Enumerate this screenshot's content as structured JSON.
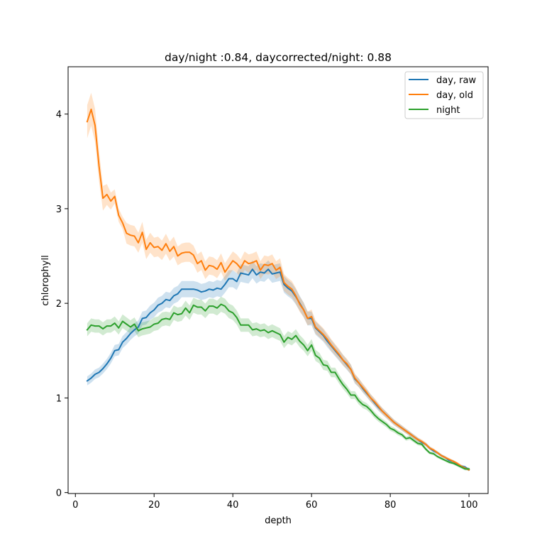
{
  "chart_data": {
    "type": "line",
    "title": "day/night :0.84, daycorrected/night: 0.88",
    "xlabel": "depth",
    "ylabel": "chlorophyll",
    "xlim": [
      -1.85,
      104.85
    ],
    "ylim": [
      -0.01,
      4.5
    ],
    "xticks": [
      0,
      20,
      40,
      60,
      80,
      100
    ],
    "yticks": [
      0,
      1,
      2,
      3,
      4
    ],
    "grid": false,
    "legend_position": "top-right",
    "x": [
      3,
      4,
      5,
      6,
      7,
      8,
      9,
      10,
      11,
      12,
      13,
      14,
      15,
      16,
      17,
      18,
      19,
      20,
      21,
      22,
      23,
      24,
      25,
      26,
      27,
      28,
      29,
      30,
      31,
      32,
      33,
      34,
      35,
      36,
      37,
      38,
      39,
      40,
      41,
      42,
      43,
      44,
      45,
      46,
      47,
      48,
      49,
      50,
      51,
      52,
      53,
      54,
      55,
      56,
      57,
      58,
      59,
      60,
      61,
      62,
      63,
      64,
      65,
      66,
      67,
      68,
      69,
      70,
      71,
      72,
      73,
      74,
      75,
      76,
      77,
      78,
      79,
      80,
      81,
      82,
      83,
      84,
      85,
      86,
      87,
      88,
      89,
      90,
      91,
      92,
      93,
      94,
      95,
      96,
      97,
      98,
      99,
      100
    ],
    "series": [
      {
        "name": "day, raw",
        "color": "#1f77b4",
        "values": [
          1.18,
          1.21,
          1.25,
          1.27,
          1.31,
          1.36,
          1.42,
          1.5,
          1.51,
          1.59,
          1.63,
          1.68,
          1.72,
          1.75,
          1.84,
          1.85,
          1.9,
          1.93,
          1.98,
          2.0,
          2.04,
          2.03,
          2.08,
          2.1,
          2.15,
          2.15,
          2.15,
          2.15,
          2.14,
          2.12,
          2.13,
          2.15,
          2.14,
          2.16,
          2.15,
          2.2,
          2.26,
          2.26,
          2.23,
          2.32,
          2.31,
          2.3,
          2.36,
          2.3,
          2.33,
          2.32,
          2.36,
          2.31,
          2.32,
          2.33,
          2.2,
          2.16,
          2.13,
          2.07,
          2.0,
          1.93,
          1.84,
          1.84,
          1.74,
          1.7,
          1.66,
          1.6,
          1.55,
          1.5,
          1.45,
          1.4,
          1.35,
          1.3,
          1.2,
          1.16,
          1.1,
          1.05,
          1.0,
          0.95,
          0.9,
          0.86,
          0.82,
          0.78,
          0.74,
          0.71,
          0.68,
          0.65,
          0.62,
          0.59,
          0.56,
          0.53,
          0.51,
          0.47,
          0.44,
          0.42,
          0.39,
          0.37,
          0.34,
          0.33,
          0.3,
          0.28,
          0.27,
          0.24
        ]
      },
      {
        "name": "day, old",
        "color": "#ff7f0e",
        "values": [
          3.92,
          4.05,
          3.88,
          3.45,
          3.11,
          3.15,
          3.08,
          3.13,
          2.93,
          2.85,
          2.74,
          2.72,
          2.71,
          2.64,
          2.75,
          2.57,
          2.64,
          2.59,
          2.6,
          2.56,
          2.63,
          2.55,
          2.6,
          2.5,
          2.53,
          2.54,
          2.54,
          2.51,
          2.42,
          2.45,
          2.35,
          2.4,
          2.39,
          2.36,
          2.43,
          2.33,
          2.39,
          2.45,
          2.42,
          2.37,
          2.45,
          2.42,
          2.43,
          2.45,
          2.35,
          2.41,
          2.4,
          2.42,
          2.35,
          2.38,
          2.22,
          2.18,
          2.15,
          2.08,
          1.99,
          1.93,
          1.84,
          1.86,
          1.75,
          1.71,
          1.67,
          1.62,
          1.56,
          1.51,
          1.46,
          1.4,
          1.36,
          1.3,
          1.21,
          1.16,
          1.11,
          1.06,
          1.0,
          0.96,
          0.91,
          0.86,
          0.82,
          0.78,
          0.74,
          0.71,
          0.68,
          0.65,
          0.62,
          0.59,
          0.56,
          0.54,
          0.51,
          0.47,
          0.45,
          0.42,
          0.39,
          0.37,
          0.35,
          0.33,
          0.31,
          0.28,
          0.26,
          0.24
        ]
      },
      {
        "name": "night",
        "color": "#2ca02c",
        "values": [
          1.72,
          1.77,
          1.76,
          1.76,
          1.73,
          1.76,
          1.76,
          1.79,
          1.74,
          1.81,
          1.78,
          1.75,
          1.78,
          1.71,
          1.73,
          1.74,
          1.75,
          1.78,
          1.79,
          1.83,
          1.84,
          1.83,
          1.9,
          1.88,
          1.89,
          1.95,
          1.9,
          1.98,
          1.96,
          1.96,
          1.92,
          1.97,
          1.97,
          1.95,
          1.99,
          1.97,
          1.92,
          1.9,
          1.85,
          1.77,
          1.77,
          1.77,
          1.72,
          1.73,
          1.71,
          1.72,
          1.69,
          1.71,
          1.69,
          1.67,
          1.59,
          1.64,
          1.62,
          1.66,
          1.6,
          1.56,
          1.5,
          1.56,
          1.45,
          1.42,
          1.35,
          1.34,
          1.27,
          1.27,
          1.2,
          1.14,
          1.09,
          1.03,
          1.03,
          0.97,
          0.93,
          0.91,
          0.87,
          0.82,
          0.78,
          0.75,
          0.72,
          0.68,
          0.66,
          0.63,
          0.61,
          0.57,
          0.58,
          0.55,
          0.52,
          0.51,
          0.46,
          0.42,
          0.41,
          0.38,
          0.36,
          0.34,
          0.32,
          0.31,
          0.29,
          0.27,
          0.25,
          0.25
        ]
      }
    ]
  }
}
